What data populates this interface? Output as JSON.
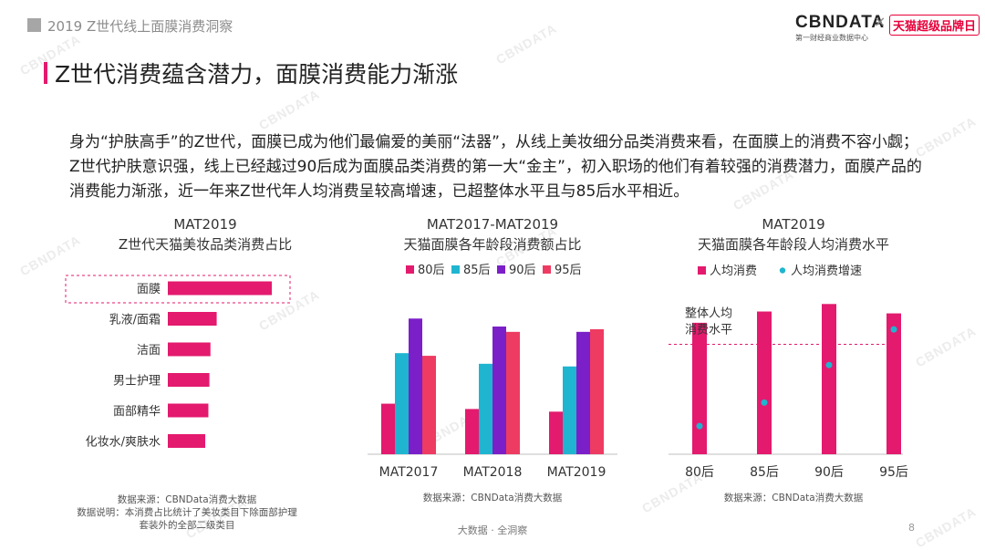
{
  "header": {
    "text": "2019 Z世代线上面膜消费洞察"
  },
  "logos": {
    "cbn": "CBNDATA",
    "cbn_sub": "第一财经商业数据中心",
    "times": "×",
    "tmall": "天猫超级品牌日",
    "watermark": "CBNDATA"
  },
  "title": "Z世代消费蕴含潜力，面膜消费能力渐涨",
  "intro": "身为“护肤高手”的Z世代，面膜已成为他们最偏爱的美丽“法器”，从线上美妆细分品类消费来看，在面膜上的消费不容小觑；Z世代护肤意识强，线上已经越过90后成为面膜品类消费的第一大“金主”，初入职场的他们有着较强的消费潜力，面膜产品的消费能力渐涨，近一年来Z世代年人均消费呈较高增速，已超整体水平且与85后水平相近。",
  "colors": {
    "accent": "#e31a6e",
    "cyan": "#1fb5d0",
    "purple": "#7b1fc9",
    "red": "#ee3b62"
  },
  "chart_data": [
    {
      "type": "bar",
      "orientation": "horizontal",
      "title": "MAT2019",
      "subtitle": "Z世代天猫美妆品类消费占比",
      "categories": [
        "面膜",
        "乳液/面霜",
        "洁面",
        "男士护理",
        "面部精华",
        "化妆水/爽肤水"
      ],
      "values": [
        100,
        47,
        41,
        40,
        39,
        36
      ],
      "highlight": "面膜",
      "notes": [
        "数据来源：CBNData消费大数据",
        "数据说明：本消费占比统计了美妆类目下除面部护理",
        "套装外的全部二级类目"
      ]
    },
    {
      "type": "bar",
      "title": "MAT2017-MAT2019",
      "subtitle": "天猫面膜各年龄段消费额占比",
      "categories": [
        "MAT2017",
        "MAT2018",
        "MAT2019"
      ],
      "series": [
        {
          "name": "80后",
          "color": "#e31a6e",
          "values": [
            19,
            17,
            16
          ]
        },
        {
          "name": "85后",
          "color": "#1fb5d0",
          "values": [
            38,
            34,
            33
          ]
        },
        {
          "name": "90后",
          "color": "#7b1fc9",
          "values": [
            51,
            48,
            46
          ]
        },
        {
          "name": "95后",
          "color": "#ee3b62",
          "values": [
            37,
            46,
            47
          ]
        }
      ],
      "ylim": [
        0,
        60
      ],
      "legend": "top",
      "note": "数据来源：CBNData消费大数据"
    },
    {
      "type": "bar",
      "title": "MAT2019",
      "subtitle": "天猫面膜各年龄段人均消费水平",
      "categories": [
        "80后",
        "85后",
        "90后",
        "95后"
      ],
      "series": [
        {
          "name": "人均消费",
          "kind": "bar",
          "color": "#e31a6e",
          "values": [
            140,
            152,
            160,
            150
          ]
        },
        {
          "name": "人均消费增速",
          "kind": "dot",
          "color": "#1fb5d0",
          "values": [
            30,
            55,
            95,
            133
          ]
        }
      ],
      "reference": {
        "label_line1": "整体人均",
        "label_line2": "消费水平",
        "value": 117
      },
      "ylim": [
        0,
        170
      ],
      "legend": "top",
      "note": "数据来源：CBNData消费大数据"
    }
  ],
  "footer": {
    "text": "大数据 · 全洞察",
    "page": "8"
  }
}
